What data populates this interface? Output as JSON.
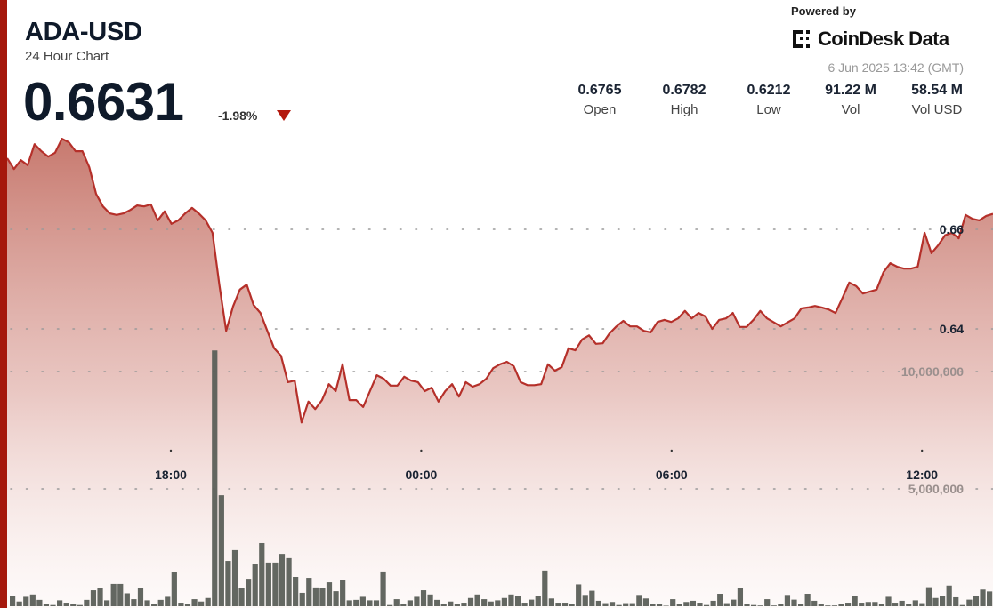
{
  "header": {
    "symbol": "ADA-USD",
    "subtitle": "24 Hour Chart",
    "price": "0.6631",
    "change": "-1.98%",
    "change_direction": "down",
    "powered_by": "Powered by",
    "brand": "CoinDesk Data",
    "timestamp": "6 Jun 2025 13:42 (GMT)"
  },
  "stats": [
    {
      "value": "0.6765",
      "label": "Open"
    },
    {
      "value": "0.6782",
      "label": "High"
    },
    {
      "value": "0.6212",
      "label": "Low"
    },
    {
      "value": "91.22 M",
      "label": "Vol"
    },
    {
      "value": "58.54 M",
      "label": "Vol USD"
    }
  ],
  "colors": {
    "accent": "#a5180c",
    "line": "#b5302a",
    "volume": "#5b5f58",
    "text": "#0f1a2a"
  },
  "chart_data": {
    "type": "area",
    "x_start": "2025-06-05T14:04",
    "x_end": "2025-06-06T13:42",
    "xticks": [
      "18:00",
      "00:00",
      "06:00",
      "12:00"
    ],
    "price_ticks": [
      {
        "value": 0.66,
        "label": "0.66"
      },
      {
        "value": 0.64,
        "label": "0.64"
      }
    ],
    "volume_ticks": [
      {
        "value": 10000000,
        "label": "10,000,000"
      },
      {
        "value": 5000000,
        "label": "5,000,000"
      }
    ],
    "grid": "dotted horizontal",
    "series": [
      {
        "type": "area",
        "values": [
          0.6743,
          0.6721,
          0.6739,
          0.6729,
          0.6771,
          0.6757,
          0.6746,
          0.6754,
          0.6782,
          0.6775,
          0.6757,
          0.6757,
          0.6725,
          0.6671,
          0.6646,
          0.6632,
          0.6629,
          0.6632,
          0.6639,
          0.6648,
          0.6646,
          0.665,
          0.6618,
          0.6636,
          0.6611,
          0.6618,
          0.6632,
          0.6643,
          0.6632,
          0.6618,
          0.6593,
          0.6489,
          0.6396,
          0.6445,
          0.6479,
          0.6489,
          0.6448,
          0.6432,
          0.6396,
          0.6361,
          0.6346,
          0.6293,
          0.6296,
          0.6212,
          0.6254,
          0.6239,
          0.6257,
          0.6289,
          0.6275,
          0.6329,
          0.6257,
          0.6257,
          0.6243,
          0.6275,
          0.6307,
          0.63,
          0.6286,
          0.6286,
          0.6304,
          0.6296,
          0.6293,
          0.6275,
          0.6282,
          0.6254,
          0.6275,
          0.6289,
          0.6264,
          0.6293,
          0.6284,
          0.6289,
          0.63,
          0.6321,
          0.6329,
          0.6334,
          0.6325,
          0.6293,
          0.6287,
          0.6287,
          0.6289,
          0.6329,
          0.6316,
          0.6323,
          0.6361,
          0.6357,
          0.6379,
          0.6387,
          0.637,
          0.6371,
          0.6391,
          0.6405,
          0.6416,
          0.6405,
          0.6405,
          0.6396,
          0.6393,
          0.6414,
          0.6418,
          0.6414,
          0.6421,
          0.6436,
          0.6421,
          0.6432,
          0.6425,
          0.64,
          0.6418,
          0.6421,
          0.6432,
          0.6404,
          0.6404,
          0.6418,
          0.6436,
          0.6421,
          0.6413,
          0.6405,
          0.6413,
          0.6421,
          0.6441,
          0.6443,
          0.6446,
          0.6443,
          0.6439,
          0.6432,
          0.6462,
          0.6493,
          0.6486,
          0.6471,
          0.6475,
          0.6479,
          0.6514,
          0.6532,
          0.6525,
          0.6521,
          0.6521,
          0.6525,
          0.6593,
          0.6552,
          0.6568,
          0.6588,
          0.6593,
          0.6582,
          0.6629,
          0.6621,
          0.6618,
          0.6627,
          0.6631
        ]
      },
      {
        "type": "bar",
        "unit": "millions",
        "values": [
          0.45,
          0.2,
          0.4,
          0.5,
          0.27,
          0.1,
          0.05,
          0.25,
          0.15,
          0.1,
          0.05,
          0.27,
          0.68,
          0.76,
          0.25,
          0.95,
          0.95,
          0.55,
          0.3,
          0.76,
          0.25,
          0.1,
          0.27,
          0.4,
          1.44,
          0.15,
          0.1,
          0.3,
          0.2,
          0.35,
          10.9,
          4.73,
          1.93,
          2.39,
          0.76,
          1.17,
          1.78,
          2.69,
          1.86,
          1.86,
          2.23,
          2.05,
          1.25,
          0.57,
          1.21,
          0.8,
          0.76,
          1.02,
          0.64,
          1.1,
          0.25,
          0.27,
          0.4,
          0.25,
          0.25,
          1.48,
          0.05,
          0.3,
          0.1,
          0.25,
          0.4,
          0.68,
          0.5,
          0.27,
          0.1,
          0.2,
          0.1,
          0.15,
          0.35,
          0.5,
          0.3,
          0.2,
          0.25,
          0.35,
          0.5,
          0.43,
          0.15,
          0.28,
          0.45,
          1.52,
          0.33,
          0.15,
          0.15,
          0.1,
          0.93,
          0.48,
          0.66,
          0.23,
          0.13,
          0.18,
          0.05,
          0.13,
          0.13,
          0.48,
          0.33,
          0.1,
          0.1,
          0.02,
          0.3,
          0.08,
          0.18,
          0.23,
          0.15,
          0.05,
          0.23,
          0.53,
          0.13,
          0.28,
          0.78,
          0.1,
          0.05,
          0.03,
          0.3,
          0.03,
          0.1,
          0.48,
          0.28,
          0.1,
          0.53,
          0.23,
          0.08,
          0.03,
          0.03,
          0.08,
          0.15,
          0.45,
          0.15,
          0.18,
          0.18,
          0.08,
          0.4,
          0.15,
          0.23,
          0.1,
          0.25,
          0.13,
          0.81,
          0.35,
          0.45,
          0.88,
          0.38,
          0.05,
          0.28,
          0.45,
          0.71,
          0.63
        ]
      }
    ]
  }
}
